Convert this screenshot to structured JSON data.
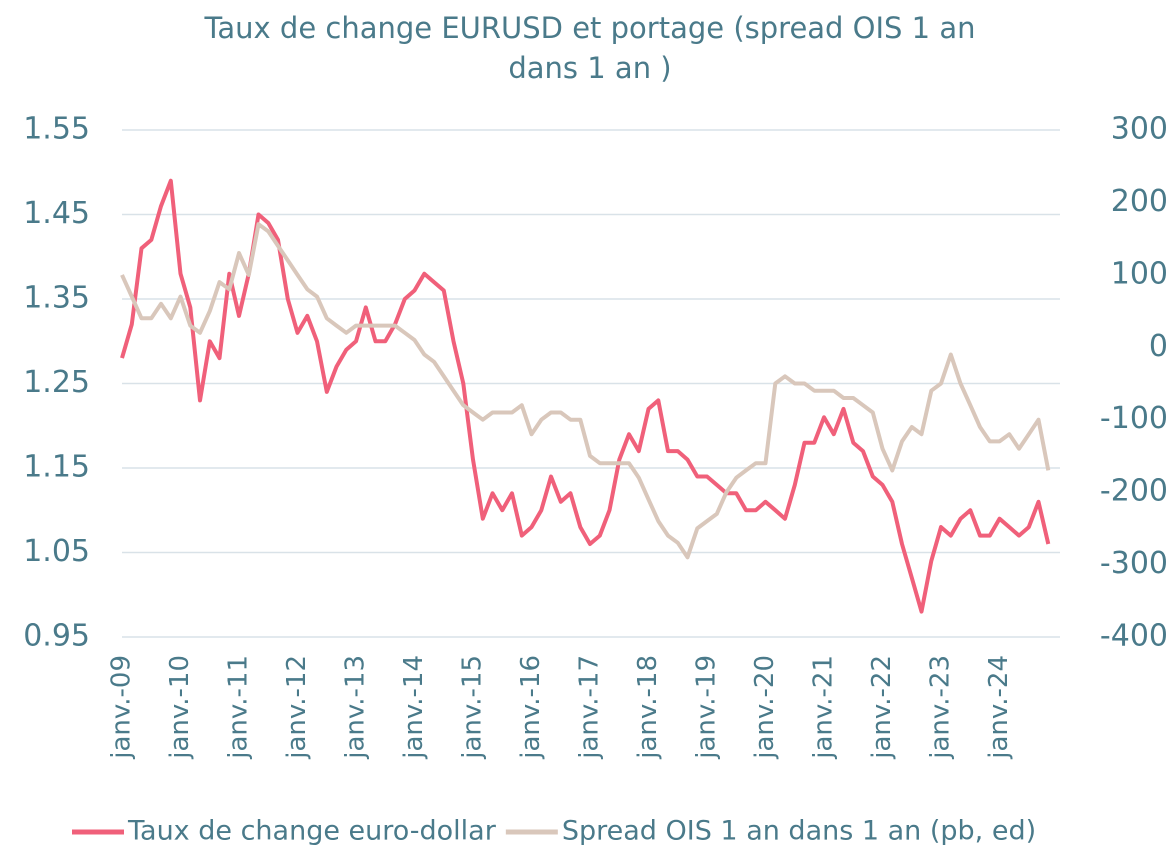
{
  "chart_data": {
    "type": "line",
    "title": "Taux de change EURUSD  et portage (spread OIS 1 an dans 1 an )",
    "categories": [
      "janv.-09",
      null,
      null,
      null,
      null,
      null,
      "janv.-10",
      null,
      null,
      null,
      null,
      null,
      "janv.-11",
      null,
      null,
      null,
      null,
      null,
      "janv.-12",
      null,
      null,
      null,
      null,
      null,
      "janv.-13",
      null,
      null,
      null,
      null,
      null,
      "janv.-14",
      null,
      null,
      null,
      null,
      null,
      "janv.-15",
      null,
      null,
      null,
      null,
      null,
      "janv.-16",
      null,
      null,
      null,
      null,
      null,
      "janv.-17",
      null,
      null,
      null,
      null,
      null,
      "janv.-18",
      null,
      null,
      null,
      null,
      null,
      "janv.-19",
      null,
      null,
      null,
      null,
      null,
      "janv.-20",
      null,
      null,
      null,
      null,
      null,
      "janv.-21",
      null,
      null,
      null,
      null,
      null,
      "janv.-22",
      null,
      null,
      null,
      null,
      null,
      "janv.-23",
      null,
      null,
      null,
      null,
      null,
      "janv.-24",
      null,
      null,
      null,
      null,
      null
    ],
    "series": [
      {
        "name": "Taux de change euro-dollar",
        "color": "#f0607a",
        "axis": "y",
        "values": [
          1.28,
          1.32,
          1.41,
          1.42,
          1.46,
          1.49,
          1.38,
          1.34,
          1.23,
          1.3,
          1.28,
          1.38,
          1.33,
          1.38,
          1.45,
          1.44,
          1.42,
          1.35,
          1.31,
          1.33,
          1.3,
          1.24,
          1.27,
          1.29,
          1.3,
          1.34,
          1.3,
          1.3,
          1.32,
          1.35,
          1.36,
          1.38,
          1.37,
          1.36,
          1.3,
          1.25,
          1.16,
          1.09,
          1.12,
          1.1,
          1.12,
          1.07,
          1.08,
          1.1,
          1.14,
          1.11,
          1.12,
          1.08,
          1.06,
          1.07,
          1.1,
          1.16,
          1.19,
          1.17,
          1.22,
          1.23,
          1.17,
          1.17,
          1.16,
          1.14,
          1.14,
          1.13,
          1.12,
          1.12,
          1.1,
          1.1,
          1.11,
          1.1,
          1.09,
          1.13,
          1.18,
          1.18,
          1.21,
          1.19,
          1.22,
          1.18,
          1.17,
          1.14,
          1.13,
          1.11,
          1.06,
          1.02,
          0.98,
          1.04,
          1.08,
          1.07,
          1.09,
          1.1,
          1.07,
          1.07,
          1.09,
          1.08,
          1.07,
          1.08,
          1.11,
          1.06
        ]
      },
      {
        "name": "Spread OIS 1 an dans 1 an (pb, ed)",
        "color": "#d9c7bb",
        "axis": "y2",
        "values": [
          100,
          70,
          40,
          40,
          60,
          40,
          70,
          30,
          20,
          50,
          90,
          80,
          130,
          100,
          170,
          160,
          140,
          120,
          100,
          80,
          70,
          40,
          30,
          20,
          30,
          30,
          30,
          30,
          30,
          20,
          10,
          -10,
          -20,
          -40,
          -60,
          -80,
          -90,
          -100,
          -90,
          -90,
          -90,
          -80,
          -120,
          -100,
          -90,
          -90,
          -100,
          -100,
          -150,
          -160,
          -160,
          -160,
          -160,
          -180,
          -210,
          -240,
          -260,
          -270,
          -290,
          -250,
          -240,
          -230,
          -200,
          -180,
          -170,
          -160,
          -160,
          -50,
          -40,
          -50,
          -50,
          -60,
          -60,
          -60,
          -70,
          -70,
          -80,
          -90,
          -140,
          -170,
          -130,
          -110,
          -120,
          -60,
          -50,
          -10,
          -50,
          -80,
          -110,
          -130,
          -130,
          -120,
          -140,
          -120,
          -100,
          -170
        ]
      }
    ],
    "ylim": [
      0.95,
      1.55
    ],
    "yticks": [
      0.95,
      1.05,
      1.15,
      1.25,
      1.35,
      1.45,
      1.55
    ],
    "y2lim": [
      -400,
      300
    ],
    "y2ticks": [
      -400,
      -300,
      -200,
      -100,
      0,
      100,
      200,
      300
    ],
    "grid": true
  }
}
